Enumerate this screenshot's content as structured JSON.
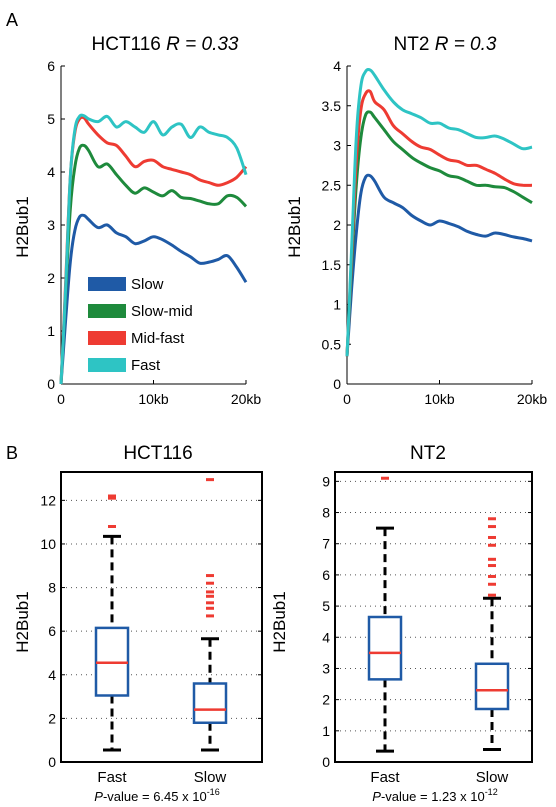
{
  "panel_labels": [
    "A",
    "B"
  ],
  "chart_data": [
    {
      "type": "line",
      "title": "HCT116",
      "title_stat": "R = 0.33",
      "xlabel": "",
      "ylabel": "H2Bub1",
      "x_tick_labels": [
        "0",
        "10kb",
        "20kb"
      ],
      "y_tick_labels": [
        "0",
        "1",
        "2",
        "3",
        "4",
        "5",
        "6"
      ],
      "xlim": [
        0,
        20
      ],
      "ylim": [
        0,
        6
      ],
      "legend_location": "lower-left",
      "series": [
        {
          "name": "Slow",
          "color": "#1f5aa6",
          "x": [
            0,
            0.5,
            1,
            1.5,
            2,
            2.5,
            3,
            4,
            5,
            6,
            7,
            8,
            9,
            10,
            11,
            12,
            13,
            14,
            15,
            16,
            17,
            18,
            19,
            20
          ],
          "y": [
            0,
            1.2,
            2.3,
            2.9,
            3.15,
            3.18,
            3.1,
            2.95,
            3.0,
            2.85,
            2.78,
            2.65,
            2.7,
            2.78,
            2.72,
            2.62,
            2.5,
            2.4,
            2.28,
            2.3,
            2.35,
            2.42,
            2.2,
            1.92
          ]
        },
        {
          "name": "Slow-mid",
          "color": "#1e8a3c",
          "x": [
            0,
            0.5,
            1,
            1.5,
            2,
            2.5,
            3,
            4,
            5,
            6,
            7,
            8,
            9,
            10,
            11,
            12,
            13,
            14,
            15,
            16,
            17,
            18,
            19,
            20
          ],
          "y": [
            0,
            1.7,
            3.3,
            4.1,
            4.45,
            4.5,
            4.4,
            4.1,
            4.15,
            3.95,
            3.75,
            3.6,
            3.7,
            3.62,
            3.55,
            3.65,
            3.52,
            3.5,
            3.45,
            3.4,
            3.4,
            3.55,
            3.52,
            3.35
          ]
        },
        {
          "name": "Mid-fast",
          "color": "#ee3b32",
          "x": [
            0,
            0.5,
            1,
            1.5,
            2,
            2.5,
            3,
            4,
            5,
            6,
            7,
            8,
            9,
            10,
            11,
            12,
            13,
            14,
            15,
            16,
            17,
            18,
            19,
            20
          ],
          "y": [
            0,
            1.9,
            3.9,
            4.75,
            5.0,
            5.02,
            4.9,
            4.7,
            4.55,
            4.5,
            4.3,
            4.1,
            4.2,
            4.22,
            4.1,
            4.05,
            4.0,
            3.95,
            3.85,
            3.8,
            3.75,
            3.8,
            3.9,
            4.1
          ]
        },
        {
          "name": "Fast",
          "color": "#2ec4c4",
          "x": [
            0,
            0.5,
            1,
            1.5,
            2,
            2.5,
            3,
            4,
            5,
            6,
            7,
            8,
            9,
            10,
            11,
            12,
            13,
            14,
            15,
            16,
            17,
            18,
            19,
            20
          ],
          "y": [
            0,
            1.8,
            3.9,
            4.8,
            5.05,
            5.06,
            5.0,
            4.95,
            5.05,
            4.85,
            4.95,
            4.85,
            4.75,
            4.95,
            4.7,
            4.85,
            4.9,
            4.65,
            4.85,
            4.75,
            4.7,
            4.65,
            4.45,
            3.95
          ]
        }
      ]
    },
    {
      "type": "line",
      "title": "NT2",
      "title_stat": "R = 0.3",
      "xlabel": "",
      "ylabel": "H2Bub1",
      "x_tick_labels": [
        "0",
        "10kb",
        "20kb"
      ],
      "y_tick_labels": [
        "0",
        "0.5",
        "1",
        "1.5",
        "2",
        "2.5",
        "3",
        "3.5",
        "4"
      ],
      "xlim": [
        0,
        20
      ],
      "ylim": [
        0,
        4
      ],
      "series": [
        {
          "name": "Slow",
          "color": "#1f5aa6",
          "x": [
            0,
            0.5,
            1,
            1.5,
            2,
            2.5,
            3,
            4,
            5,
            6,
            7,
            8,
            9,
            10,
            11,
            12,
            13,
            14,
            15,
            16,
            17,
            18,
            19,
            20
          ],
          "y": [
            0.35,
            1.2,
            1.9,
            2.4,
            2.6,
            2.62,
            2.55,
            2.35,
            2.28,
            2.22,
            2.12,
            2.05,
            2.0,
            2.05,
            2.02,
            1.98,
            1.92,
            1.88,
            1.86,
            1.9,
            1.88,
            1.85,
            1.83,
            1.8
          ]
        },
        {
          "name": "Slow-mid",
          "color": "#1e8a3c",
          "x": [
            0,
            0.5,
            1,
            1.5,
            2,
            2.5,
            3,
            4,
            5,
            6,
            7,
            8,
            9,
            10,
            11,
            12,
            13,
            14,
            15,
            16,
            17,
            18,
            19,
            20
          ],
          "y": [
            0.35,
            1.5,
            2.5,
            3.1,
            3.38,
            3.42,
            3.35,
            3.2,
            3.05,
            2.95,
            2.85,
            2.78,
            2.72,
            2.68,
            2.62,
            2.6,
            2.55,
            2.5,
            2.5,
            2.48,
            2.47,
            2.42,
            2.35,
            2.28
          ]
        },
        {
          "name": "Mid-fast",
          "color": "#ee3b32",
          "x": [
            0,
            0.5,
            1,
            1.5,
            2,
            2.5,
            3,
            4,
            5,
            6,
            7,
            8,
            9,
            10,
            11,
            12,
            13,
            14,
            15,
            16,
            17,
            18,
            19,
            20
          ],
          "y": [
            0.35,
            1.6,
            2.8,
            3.45,
            3.65,
            3.68,
            3.55,
            3.45,
            3.25,
            3.15,
            3.05,
            2.98,
            2.95,
            2.88,
            2.82,
            2.8,
            2.75,
            2.75,
            2.7,
            2.65,
            2.58,
            2.52,
            2.5,
            2.5
          ]
        },
        {
          "name": "Fast",
          "color": "#2ec4c4",
          "x": [
            0,
            0.5,
            1,
            1.5,
            2,
            2.5,
            3,
            4,
            5,
            6,
            7,
            8,
            9,
            10,
            11,
            12,
            13,
            14,
            15,
            16,
            17,
            18,
            19,
            20
          ],
          "y": [
            0.35,
            1.7,
            3.1,
            3.75,
            3.93,
            3.95,
            3.88,
            3.7,
            3.55,
            3.45,
            3.4,
            3.35,
            3.28,
            3.28,
            3.22,
            3.2,
            3.15,
            3.1,
            3.1,
            3.12,
            3.08,
            3.02,
            2.96,
            2.98
          ]
        }
      ]
    },
    {
      "type": "box",
      "title": "HCT116",
      "ylabel": "H2Bub1",
      "categories": [
        "Fast",
        "Slow"
      ],
      "y_tick_labels": [
        "0",
        "2",
        "4",
        "6",
        "8",
        "10",
        "12"
      ],
      "ylim": [
        0,
        13.3
      ],
      "grid": true,
      "boxes": [
        {
          "category": "Fast",
          "whisker_low": 0.55,
          "q1": 3.05,
          "median": 4.55,
          "q3": 6.15,
          "whisker_high": 10.35,
          "outliers": [
            10.8,
            12.1,
            12.2
          ]
        },
        {
          "category": "Slow",
          "whisker_low": 0.55,
          "q1": 1.8,
          "median": 2.4,
          "q3": 3.6,
          "whisker_high": 5.65,
          "outliers": [
            6.7,
            7.05,
            7.3,
            7.6,
            7.8,
            8.2,
            8.55,
            12.95
          ]
        }
      ],
      "pvalue_label": "P",
      "pvalue_text": "-value = 6.45 x 10",
      "pvalue_exponent": "-16"
    },
    {
      "type": "box",
      "title": "NT2",
      "ylabel": "H2Bub1",
      "categories": [
        "Fast",
        "Slow"
      ],
      "y_tick_labels": [
        "0",
        "1",
        "2",
        "3",
        "4",
        "5",
        "6",
        "7",
        "8",
        "9"
      ],
      "ylim": [
        0,
        9.3
      ],
      "grid": true,
      "boxes": [
        {
          "category": "Fast",
          "whisker_low": 0.35,
          "q1": 2.65,
          "median": 3.5,
          "q3": 4.65,
          "whisker_high": 7.5,
          "outliers": [
            9.1
          ]
        },
        {
          "category": "Slow",
          "whisker_low": 0.4,
          "q1": 1.7,
          "median": 2.3,
          "q3": 3.15,
          "whisker_high": 5.25,
          "outliers": [
            5.35,
            5.7,
            5.95,
            6.3,
            6.5,
            6.95,
            7.2,
            7.55,
            7.8
          ]
        }
      ],
      "pvalue_label": "P",
      "pvalue_text": "-value = 1.23 x 10",
      "pvalue_exponent": "-12"
    }
  ]
}
